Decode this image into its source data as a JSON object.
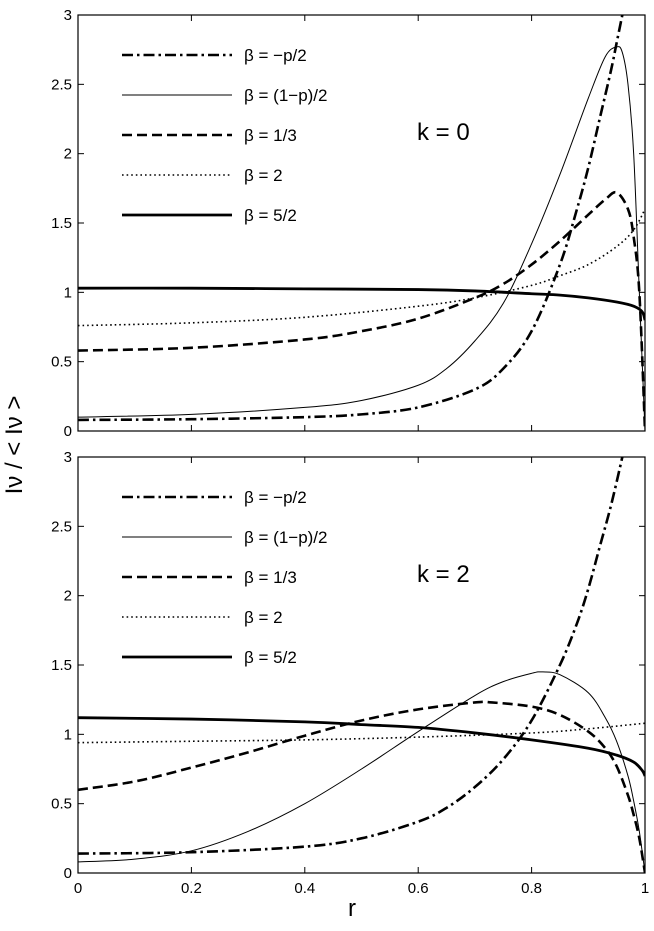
{
  "chart_data": [
    {
      "type": "line",
      "panel_label": "k = 0",
      "xlim": [
        0,
        1
      ],
      "ylim": [
        0,
        3
      ],
      "xticks": [
        "",
        "",
        "",
        "",
        "",
        ""
      ],
      "yticks": [
        "0",
        "0.5",
        "1",
        "1.5",
        "2",
        "2.5",
        "3"
      ],
      "legend": [
        "β = −p/2",
        "β = (1−p)/2",
        "β = 1/3",
        "β = 2",
        "β = 5/2"
      ],
      "legend_placement": "top-left",
      "grid": false,
      "series": [
        {
          "name": "β = −p/2",
          "style": "dashdot",
          "x": [
            0,
            0.2,
            0.4,
            0.5,
            0.6,
            0.7,
            0.75,
            0.8,
            0.85,
            0.88,
            0.9,
            0.92,
            0.94,
            0.95,
            0.96,
            0.97,
            0.98
          ],
          "y": [
            0.08,
            0.085,
            0.1,
            0.12,
            0.17,
            0.3,
            0.45,
            0.72,
            1.2,
            1.6,
            1.9,
            2.25,
            2.6,
            2.8,
            3.0,
            3.2,
            3.4
          ]
        },
        {
          "name": "β = (1−p)/2",
          "style": "thin",
          "x": [
            0,
            0.2,
            0.4,
            0.5,
            0.6,
            0.65,
            0.7,
            0.75,
            0.8,
            0.85,
            0.9,
            0.93,
            0.95,
            0.96,
            0.97,
            0.98,
            0.99,
            1.0
          ],
          "y": [
            0.1,
            0.12,
            0.17,
            0.22,
            0.33,
            0.45,
            0.65,
            0.92,
            1.35,
            1.85,
            2.4,
            2.7,
            2.77,
            2.73,
            2.5,
            2.0,
            1.0,
            0.0
          ]
        },
        {
          "name": "β = 1/3",
          "style": "dashed",
          "x": [
            0,
            0.2,
            0.4,
            0.5,
            0.6,
            0.7,
            0.75,
            0.8,
            0.85,
            0.9,
            0.93,
            0.95,
            0.97,
            0.98,
            0.99,
            1.0
          ],
          "y": [
            0.58,
            0.6,
            0.66,
            0.72,
            0.81,
            0.96,
            1.06,
            1.2,
            1.37,
            1.56,
            1.67,
            1.72,
            1.6,
            1.4,
            1.0,
            0.0
          ]
        },
        {
          "name": "β = 2",
          "style": "dotted",
          "x": [
            0,
            0.2,
            0.4,
            0.6,
            0.7,
            0.8,
            0.85,
            0.9,
            0.95,
            0.98,
            1.0
          ],
          "y": [
            0.76,
            0.78,
            0.82,
            0.9,
            0.96,
            1.05,
            1.12,
            1.2,
            1.33,
            1.45,
            1.6
          ]
        },
        {
          "name": "β = 5/2",
          "style": "thick",
          "x": [
            0,
            0.2,
            0.4,
            0.6,
            0.7,
            0.8,
            0.85,
            0.9,
            0.95,
            0.98,
            0.995,
            1.0
          ],
          "y": [
            1.03,
            1.03,
            1.025,
            1.02,
            1.01,
            0.99,
            0.98,
            0.96,
            0.93,
            0.9,
            0.86,
            0.8
          ]
        }
      ]
    },
    {
      "type": "line",
      "panel_label": "k = 2",
      "xlim": [
        0,
        1
      ],
      "ylim": [
        0,
        3
      ],
      "xticks": [
        "0",
        "0.2",
        "0.4",
        "0.6",
        "0.8",
        "1"
      ],
      "yticks": [
        "0",
        "0.5",
        "1",
        "1.5",
        "2",
        "2.5",
        "3"
      ],
      "legend": [
        "β = −p/2",
        "β = (1−p)/2",
        "β = 1/3",
        "β = 2",
        "β = 5/2"
      ],
      "legend_placement": "top-left",
      "grid": false,
      "series": [
        {
          "name": "β = −p/2",
          "style": "dashdot",
          "x": [
            0,
            0.2,
            0.4,
            0.5,
            0.6,
            0.65,
            0.7,
            0.75,
            0.8,
            0.85,
            0.88,
            0.9,
            0.92,
            0.94,
            0.96,
            0.97
          ],
          "y": [
            0.14,
            0.15,
            0.19,
            0.25,
            0.37,
            0.47,
            0.62,
            0.82,
            1.1,
            1.5,
            1.8,
            2.05,
            2.35,
            2.65,
            3.0,
            3.2
          ]
        },
        {
          "name": "β = (1−p)/2",
          "style": "thin",
          "x": [
            0,
            0.1,
            0.2,
            0.3,
            0.4,
            0.5,
            0.6,
            0.7,
            0.75,
            0.8,
            0.82,
            0.85,
            0.9,
            0.93,
            0.95,
            0.97,
            0.98,
            0.99,
            1.0
          ],
          "y": [
            0.08,
            0.1,
            0.16,
            0.3,
            0.5,
            0.75,
            1.02,
            1.28,
            1.38,
            1.44,
            1.45,
            1.43,
            1.3,
            1.12,
            0.95,
            0.7,
            0.52,
            0.3,
            0.0
          ]
        },
        {
          "name": "β = 1/3",
          "style": "dashed",
          "x": [
            0,
            0.1,
            0.2,
            0.3,
            0.4,
            0.5,
            0.6,
            0.7,
            0.73,
            0.8,
            0.85,
            0.9,
            0.93,
            0.95,
            0.97,
            0.98,
            0.99,
            1.0
          ],
          "y": [
            0.6,
            0.66,
            0.76,
            0.87,
            0.99,
            1.1,
            1.18,
            1.23,
            1.23,
            1.2,
            1.14,
            1.02,
            0.9,
            0.77,
            0.56,
            0.42,
            0.25,
            0.0
          ]
        },
        {
          "name": "β = 2",
          "style": "dotted",
          "x": [
            0,
            0.2,
            0.4,
            0.6,
            0.8,
            0.9,
            1.0
          ],
          "y": [
            0.94,
            0.95,
            0.96,
            0.98,
            1.01,
            1.04,
            1.08
          ]
        },
        {
          "name": "β = 5/2",
          "style": "thick",
          "x": [
            0,
            0.2,
            0.4,
            0.5,
            0.6,
            0.7,
            0.8,
            0.9,
            0.95,
            0.98,
            0.995,
            1.0
          ],
          "y": [
            1.12,
            1.11,
            1.09,
            1.07,
            1.05,
            1.01,
            0.96,
            0.9,
            0.85,
            0.8,
            0.74,
            0.7
          ]
        }
      ]
    }
  ],
  "axes": {
    "ylabel": "Iν / < Iν >",
    "xlabel": "r"
  }
}
